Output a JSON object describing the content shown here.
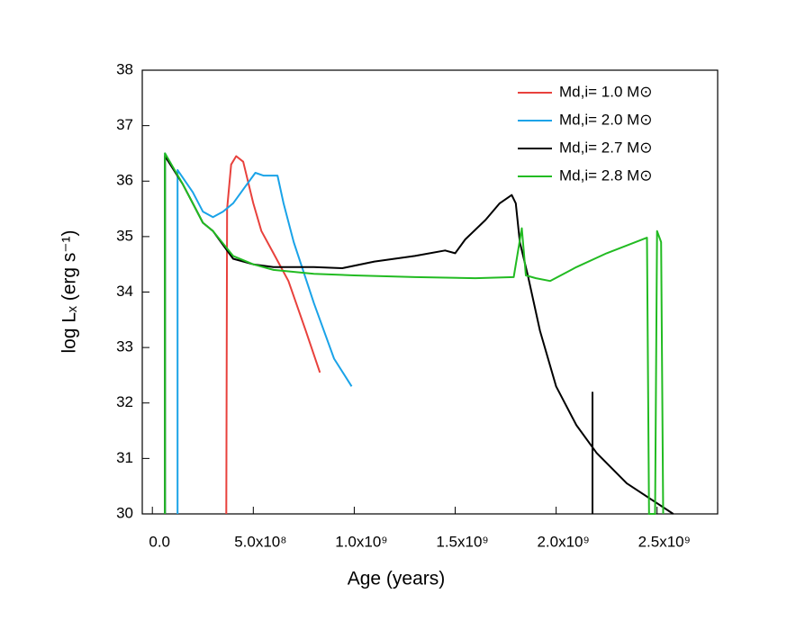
{
  "chart_data": {
    "type": "line",
    "xlabel": "Age (years)",
    "ylabel": "log Lₓ (erg s⁻¹)",
    "xlim": [
      -50000000,
      2800000000
    ],
    "ylim": [
      30,
      38
    ],
    "xticks": [
      {
        "value": 0,
        "label": "0.0"
      },
      {
        "value": 500000000,
        "label": "5.0x10⁸"
      },
      {
        "value": 1000000000,
        "label": "1.0x10⁹"
      },
      {
        "value": 1500000000,
        "label": "1.5x10⁹"
      },
      {
        "value": 2000000000,
        "label": "2.0x10⁹"
      },
      {
        "value": 2500000000,
        "label": "2.5x10⁹"
      }
    ],
    "yticks": [
      30,
      31,
      32,
      33,
      34,
      35,
      36,
      37,
      38
    ],
    "legend": "upper-right",
    "series": [
      {
        "name": "Md,i= 1.0 M⊙",
        "color": "#e8413c",
        "x": [
          366000000,
          370000000,
          390000000,
          415000000,
          450000000,
          500000000,
          540000000,
          600000000,
          674000000,
          760000000,
          830000000
        ],
        "values": [
          30,
          35.5,
          36.3,
          36.45,
          36.35,
          35.6,
          35.1,
          34.7,
          34.2,
          33.3,
          32.55
        ]
      },
      {
        "name": "Md,i= 2.0 M⊙",
        "color": "#1aa3e8",
        "x": [
          62500000,
          62500000,
          125000000,
          null,
          125000000,
          125000000,
          200000000,
          250000000,
          300000000,
          350000000,
          400000000,
          460000000,
          510000000,
          550000000,
          620000000,
          650000000,
          700000000,
          800000000,
          900000000,
          987000000
        ],
        "values": [
          30,
          36.5,
          36.1,
          null,
          30,
          36.2,
          35.8,
          35.45,
          35.35,
          35.45,
          35.6,
          35.9,
          36.15,
          36.1,
          36.1,
          35.6,
          34.9,
          33.8,
          32.8,
          32.3
        ]
      },
      {
        "name": "Md,i= 2.7 M⊙",
        "color": "#000000",
        "x": [
          62500000,
          62500000,
          150000000,
          200000000,
          250000000,
          300000000,
          350000000,
          400000000,
          500000000,
          600000000,
          700000000,
          800000000,
          940000000,
          1100000000,
          1300000000,
          1450000000,
          1500000000,
          1550000000,
          1650000000,
          1720000000,
          1780000000,
          1800000000,
          1820000000,
          1860000000,
          1920000000,
          2000000000,
          2100000000,
          2200000000,
          2350000000,
          2580000000,
          null,
          2180000000,
          2180000000
        ],
        "values": [
          30,
          36.45,
          35.95,
          35.6,
          35.25,
          35.1,
          34.85,
          34.6,
          34.5,
          34.45,
          34.45,
          34.45,
          34.43,
          34.55,
          34.65,
          34.75,
          34.7,
          34.95,
          35.3,
          35.6,
          35.75,
          35.6,
          34.9,
          34.3,
          33.3,
          32.3,
          31.6,
          31.1,
          30.55,
          30.0,
          null,
          30,
          32.2
        ]
      },
      {
        "name": "Md,i= 2.8 M⊙",
        "color": "#22bb22",
        "x": [
          62500000,
          62500000,
          150000000,
          200000000,
          250000000,
          300000000,
          400000000,
          500000000,
          600000000,
          800000000,
          1000000000,
          1300000000,
          1600000000,
          1790000000,
          1830000000,
          1850000000,
          1900000000,
          1970000000,
          2100000000,
          2250000000,
          2450000000,
          2460000000,
          2490000000,
          2500000000,
          2520000000,
          2530000000
        ],
        "values": [
          30,
          36.5,
          35.95,
          35.6,
          35.25,
          35.1,
          34.65,
          34.5,
          34.4,
          34.33,
          34.3,
          34.27,
          34.25,
          34.27,
          35.15,
          34.3,
          34.25,
          34.2,
          34.45,
          34.7,
          34.98,
          30,
          30,
          35.1,
          34.9,
          30
        ]
      }
    ]
  }
}
